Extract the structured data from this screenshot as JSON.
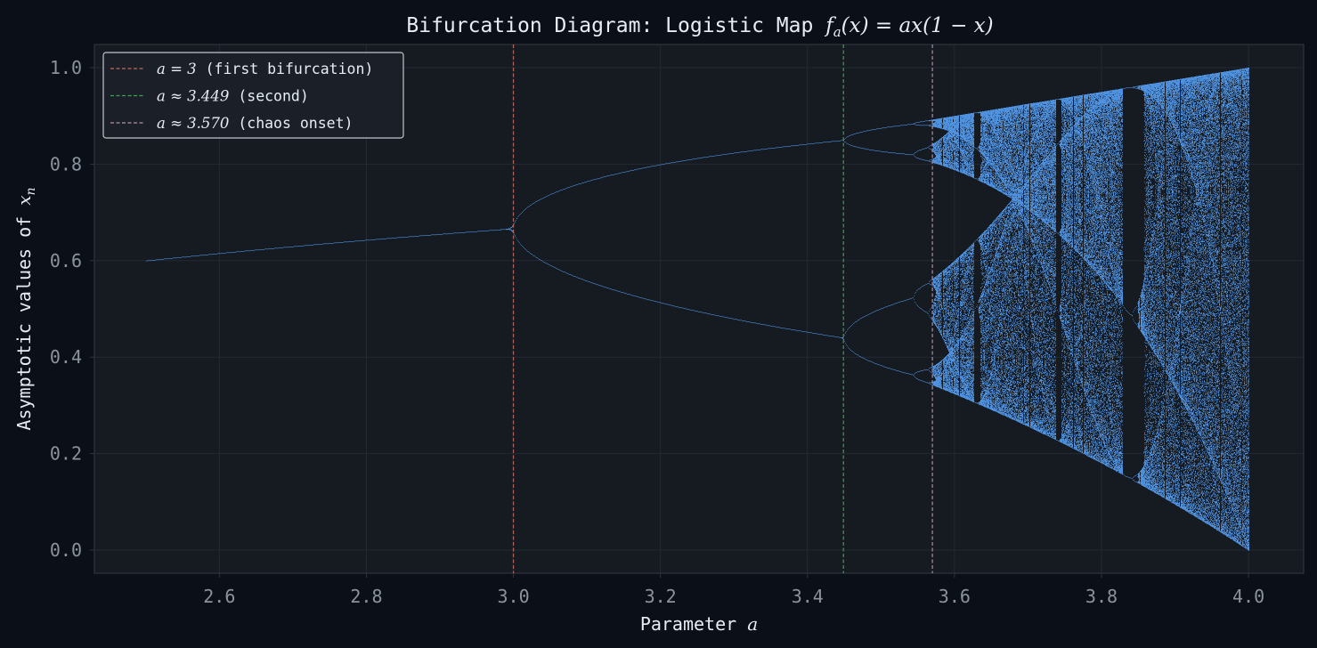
{
  "chart_data": {
    "type": "scatter",
    "title": "Bifurcation Diagram: Logistic Map f_a(x) = ax(1 − x)",
    "title_parts": {
      "prefix": "Bifurcation Diagram: Logistic Map ",
      "math": "f",
      "math_sub": "a",
      "math_rest": "(x) = ax(1 − x)"
    },
    "xlabel": "Parameter a",
    "xlabel_parts": {
      "prefix": "Parameter ",
      "math": "a"
    },
    "ylabel": "Asymptotic values of x_n",
    "ylabel_parts": {
      "prefix": "Asymptotic values of ",
      "math": "x",
      "math_sub": "n"
    },
    "xlim": [
      2.43,
      4.075
    ],
    "ylim": [
      -0.048,
      1.048
    ],
    "xticks": [
      "2.6",
      "2.8",
      "3.0",
      "3.2",
      "3.4",
      "3.6",
      "3.8",
      "4.0"
    ],
    "yticks": [
      "0.0",
      "0.2",
      "0.4",
      "0.6",
      "0.8",
      "1.0"
    ],
    "grid": true,
    "legend_position": "top-left",
    "series": [
      {
        "kind": "points",
        "description_source": "logistic map x_{n+1} = a x_n (1 - x_n) after transients",
        "a_range": [
          2.5,
          4.0
        ],
        "color": "#58a6ff"
      }
    ],
    "reference_lines": [
      {
        "x": 3.0,
        "color": "#c0685e",
        "label_math": "a = 3",
        "label_rest": " (first bifurcation)"
      },
      {
        "x": 3.449,
        "color": "#3fa34d",
        "label_math": "a ≈ 3.449",
        "label_rest": " (second)"
      },
      {
        "x": 3.57,
        "color": "#b48ead",
        "label_math": "a ≈ 3.570",
        "label_rest": " (chaos onset)"
      }
    ]
  },
  "colors": {
    "page_background": "#0b0f17",
    "plot_background": "#161b22",
    "grid": "#232a33",
    "axis": "#30363d",
    "points": "#58a6ff"
  }
}
